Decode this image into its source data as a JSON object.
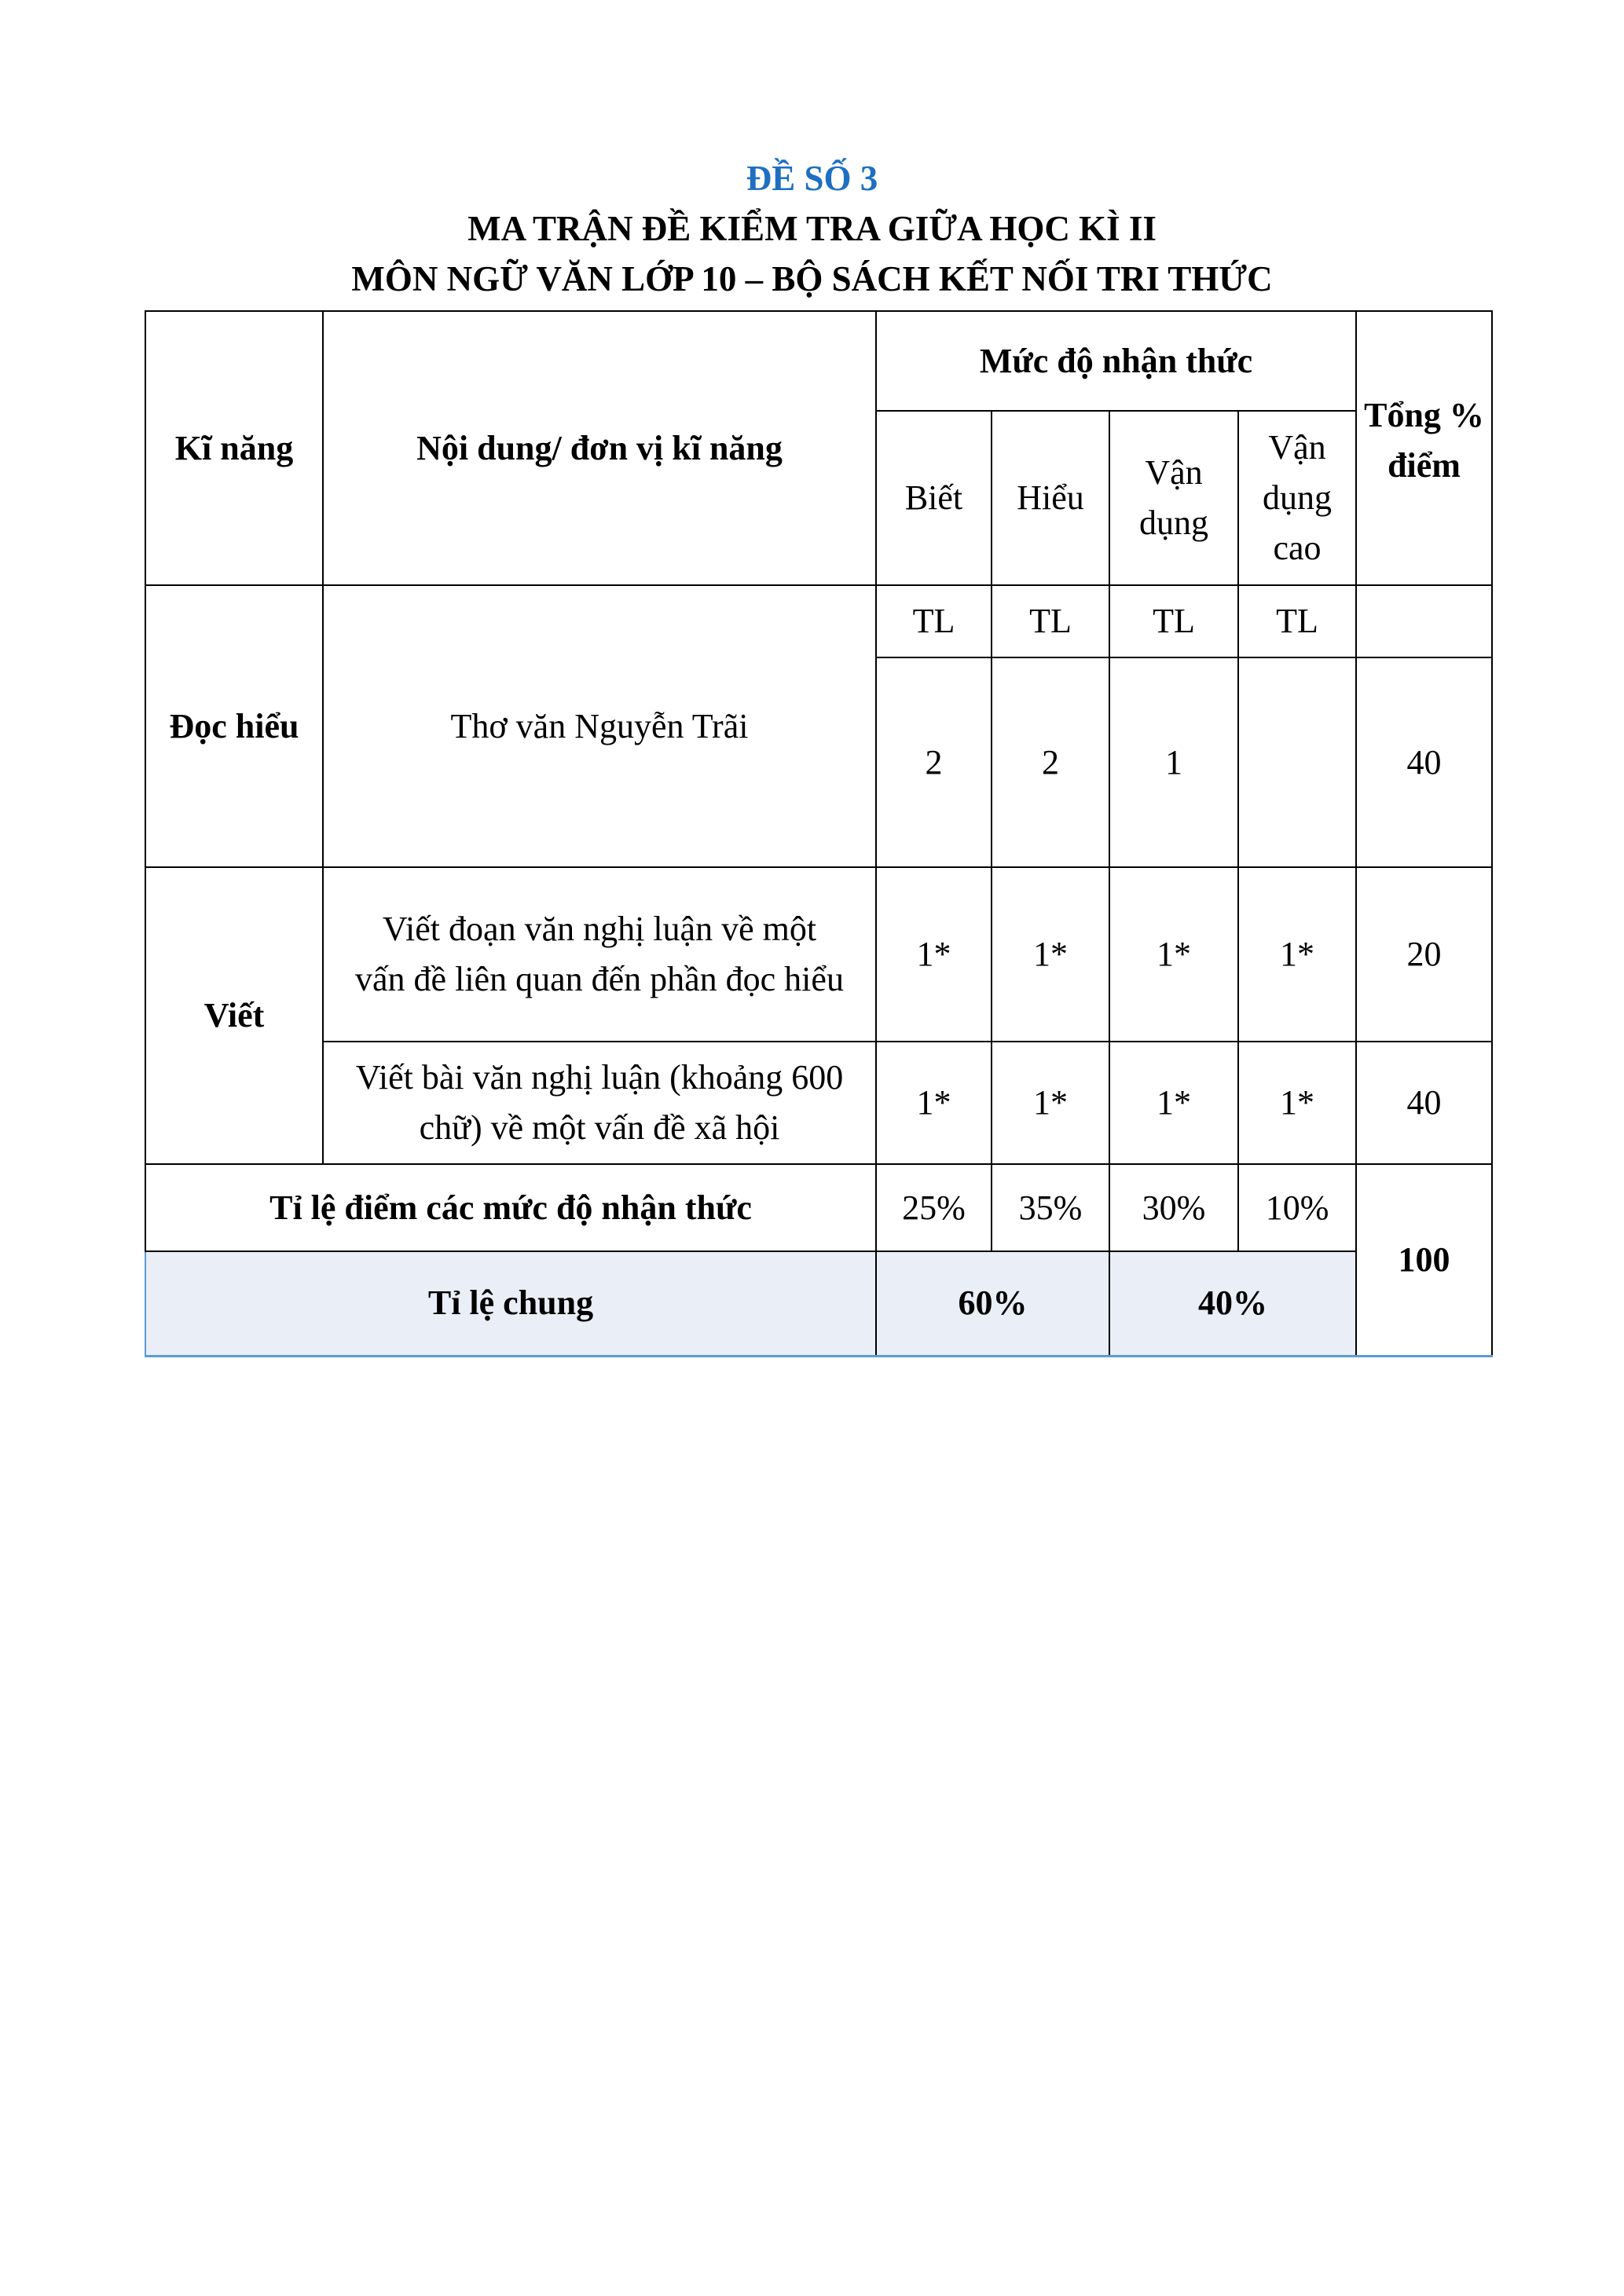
{
  "header": {
    "exam_number": "ĐỀ SỐ 3",
    "title": "MA TRẬN ĐỀ KIỂM TRA GIỮA HỌC KÌ II",
    "subtitle": "MÔN NGỮ VĂN LỚP 10 – BỘ SÁCH KẾT NỐI TRI THỨC"
  },
  "table": {
    "headers": {
      "skill": "Kĩ năng",
      "content": "Nội dung/ đơn vị kĩ năng",
      "level_group": "Mức độ nhận thức",
      "levels": [
        "Biết",
        "Hiểu",
        "Vận dụng",
        "Vận dụng cao"
      ],
      "total": "Tổng % điểm"
    },
    "question_type": [
      "TL",
      "TL",
      "TL",
      "TL"
    ],
    "rows": [
      {
        "skill": "Đọc hiểu",
        "content": "Thơ văn Nguyễn Trãi",
        "values": [
          "2",
          "2",
          "1",
          ""
        ],
        "total": "40"
      },
      {
        "skill": "Viết",
        "content": "Viết đoạn văn nghị luận về một vấn đề liên quan đến phần đọc hiểu",
        "values": [
          "1*",
          "1*",
          "1*",
          "1*"
        ],
        "total": "20"
      },
      {
        "skill": "",
        "content": "Viết bài văn nghị luận (khoảng 600 chữ) về một vấn đề xã hội",
        "values": [
          "1*",
          "1*",
          "1*",
          "1*"
        ],
        "total": "40"
      }
    ],
    "level_ratio": {
      "label": "Tỉ lệ điểm các mức độ nhận thức",
      "values": [
        "25%",
        "35%",
        "30%",
        "10%"
      ]
    },
    "overall_ratio": {
      "label": "Tỉ lệ chung",
      "values": [
        "60%",
        "40%"
      ]
    },
    "grand_total": "100",
    "highlight_color": "#e9eef7",
    "accent_color": "#1f6fc1"
  }
}
